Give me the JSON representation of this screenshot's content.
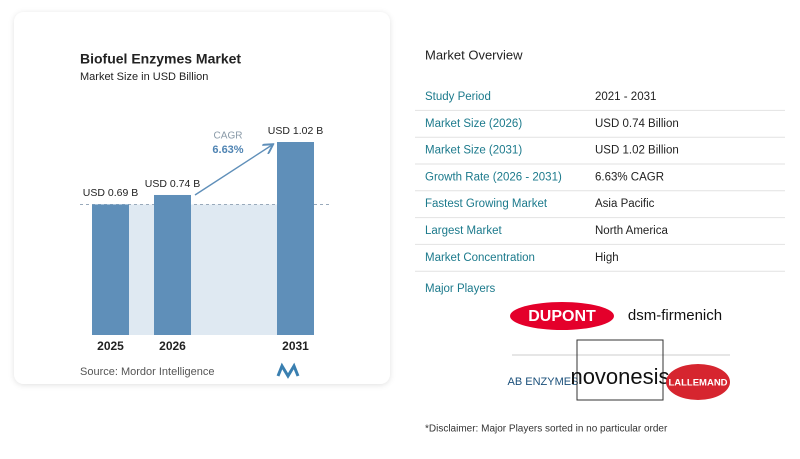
{
  "chart_data": {
    "type": "bar",
    "title": "Biofuel Enzymes Market",
    "subtitle": "Market Size in USD Billion",
    "categories": [
      "2025",
      "2026",
      "2031"
    ],
    "values": [
      0.69,
      0.74,
      1.02
    ],
    "value_labels": [
      "USD 0.69 B",
      "USD 0.74 B",
      "USD 1.02 B"
    ],
    "color": "#5f8fb9",
    "annotation": {
      "label": "CAGR",
      "value": "6.63%"
    },
    "source": "Source:  Mordor Intelligence"
  },
  "overview": {
    "title": "Market Overview",
    "rows": [
      [
        "Study Period",
        "2021 - 2031"
      ],
      [
        "Market Size (2026)",
        "USD 0.74 Billion"
      ],
      [
        "Market Size (2031)",
        "USD 1.02 Billion"
      ],
      [
        "Growth Rate (2026 - 2031)",
        "6.63% CAGR"
      ],
      [
        "Fastest Growing Market",
        "Asia Pacific"
      ],
      [
        "Largest Market",
        "North America"
      ],
      [
        "Market Concentration",
        "High"
      ]
    ],
    "players_title": "Major Players",
    "players": [
      "DUPONT",
      "dsm-firmenich",
      "AB ENZYMES",
      "novonesis",
      "LALLEMAND"
    ],
    "disclaimer": "*Disclaimer: Major Players sorted in no particular order"
  }
}
